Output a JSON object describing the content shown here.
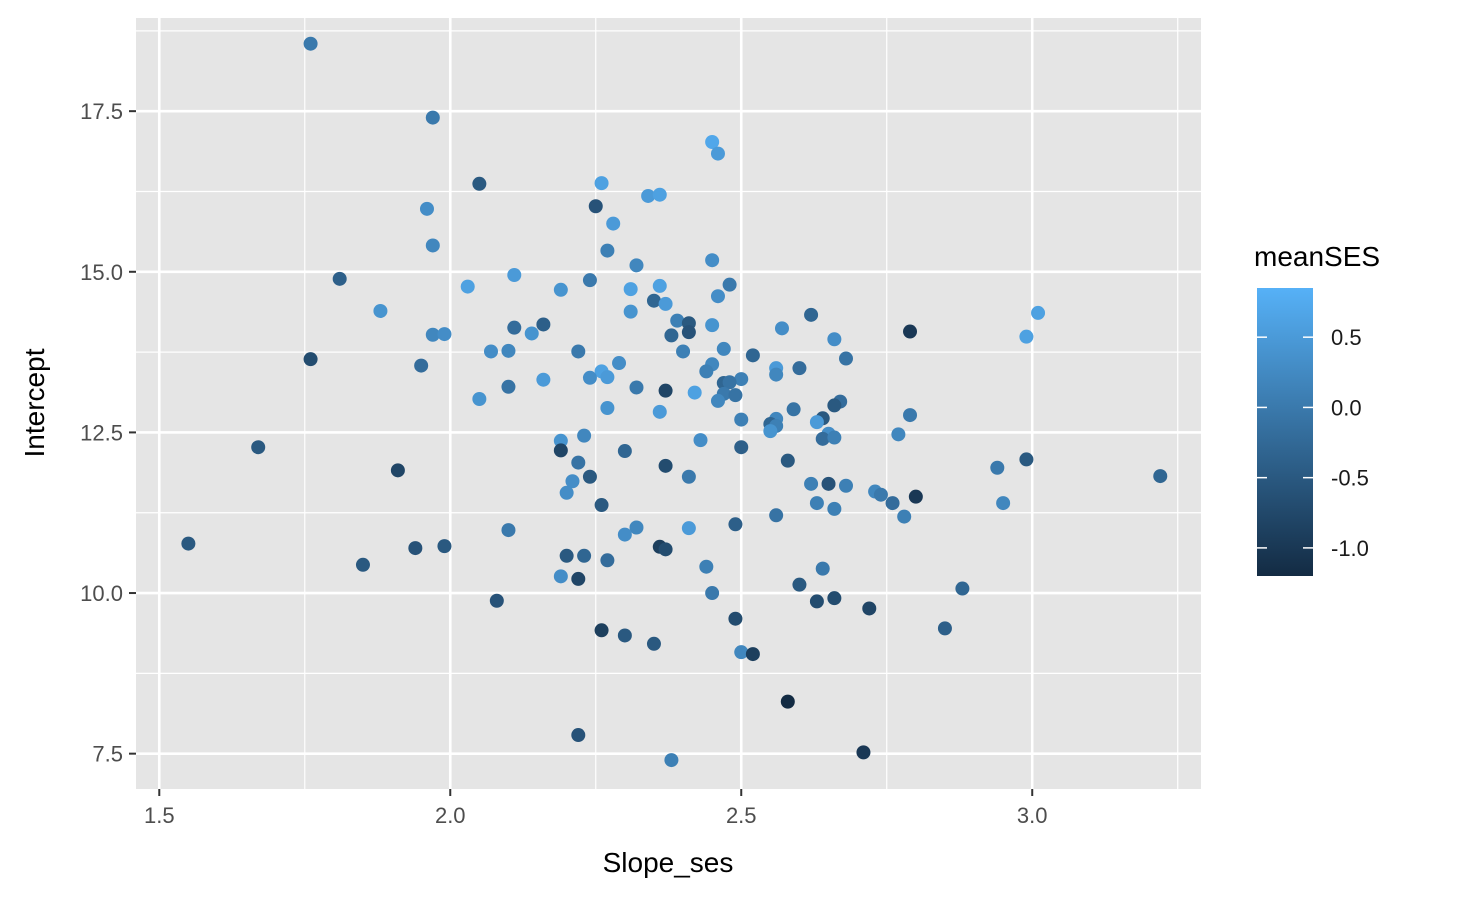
{
  "chart_data": {
    "type": "scatter",
    "title": "",
    "xlabel": "Slope_ses",
    "ylabel": "Intercept",
    "xlim": [
      1.46,
      3.29
    ],
    "ylim": [
      6.95,
      18.95
    ],
    "x_ticks": [
      1.5,
      2.0,
      2.5,
      3.0
    ],
    "x_tick_labels": [
      "1.5",
      "2.0",
      "2.5",
      "3.0"
    ],
    "y_ticks": [
      7.5,
      10.0,
      12.5,
      15.0,
      17.5
    ],
    "y_tick_labels": [
      "7.5",
      "10.0",
      "12.5",
      "15.0",
      "17.5"
    ],
    "grid": true,
    "legend": {
      "title": "meanSES",
      "placement": "right",
      "type": "colorbar",
      "range": [
        -1.2,
        0.85
      ],
      "ticks": [
        0.5,
        0.0,
        -0.5,
        -1.0
      ],
      "tick_labels": [
        "0.5",
        "0.0",
        "-0.5",
        "-1.0"
      ],
      "color_low": "#132b43",
      "color_high": "#56b1f7"
    },
    "colors": {
      "panel": "#e5e5e5",
      "grid": "#ffffff"
    },
    "points": [
      {
        "x": 1.76,
        "y": 18.55,
        "c": 0.0
      },
      {
        "x": 1.97,
        "y": 17.4,
        "c": 0.0
      },
      {
        "x": 2.45,
        "y": 17.02,
        "c": 0.7
      },
      {
        "x": 2.46,
        "y": 16.84,
        "c": 0.5
      },
      {
        "x": 2.05,
        "y": 16.37,
        "c": -0.5
      },
      {
        "x": 2.26,
        "y": 16.38,
        "c": 0.6
      },
      {
        "x": 2.34,
        "y": 16.18,
        "c": 0.5
      },
      {
        "x": 2.36,
        "y": 16.2,
        "c": 0.6
      },
      {
        "x": 2.25,
        "y": 16.02,
        "c": -0.6
      },
      {
        "x": 1.96,
        "y": 15.98,
        "c": 0.3
      },
      {
        "x": 2.28,
        "y": 15.75,
        "c": 0.5
      },
      {
        "x": 1.97,
        "y": 15.41,
        "c": 0.2
      },
      {
        "x": 2.27,
        "y": 15.33,
        "c": 0.1
      },
      {
        "x": 2.45,
        "y": 15.18,
        "c": 0.3
      },
      {
        "x": 2.32,
        "y": 15.1,
        "c": 0.2
      },
      {
        "x": 2.11,
        "y": 14.95,
        "c": 0.5
      },
      {
        "x": 1.81,
        "y": 14.89,
        "c": -0.4
      },
      {
        "x": 2.24,
        "y": 14.87,
        "c": 0.0
      },
      {
        "x": 2.48,
        "y": 14.8,
        "c": 0.0
      },
      {
        "x": 2.03,
        "y": 14.77,
        "c": 0.6
      },
      {
        "x": 2.36,
        "y": 14.78,
        "c": 0.6
      },
      {
        "x": 2.19,
        "y": 14.72,
        "c": 0.4
      },
      {
        "x": 2.31,
        "y": 14.73,
        "c": 0.6
      },
      {
        "x": 2.46,
        "y": 14.62,
        "c": 0.3
      },
      {
        "x": 2.35,
        "y": 14.55,
        "c": -0.3
      },
      {
        "x": 2.37,
        "y": 14.5,
        "c": 0.5
      },
      {
        "x": 1.88,
        "y": 14.39,
        "c": 0.4
      },
      {
        "x": 2.31,
        "y": 14.38,
        "c": 0.4
      },
      {
        "x": 3.01,
        "y": 14.36,
        "c": 0.6
      },
      {
        "x": 2.62,
        "y": 14.33,
        "c": -0.3
      },
      {
        "x": 2.39,
        "y": 14.24,
        "c": 0.1
      },
      {
        "x": 2.41,
        "y": 14.2,
        "c": -0.5
      },
      {
        "x": 2.16,
        "y": 14.18,
        "c": -0.4
      },
      {
        "x": 2.45,
        "y": 14.17,
        "c": 0.4
      },
      {
        "x": 2.11,
        "y": 14.13,
        "c": -0.2
      },
      {
        "x": 2.57,
        "y": 14.12,
        "c": 0.3
      },
      {
        "x": 2.79,
        "y": 14.07,
        "c": -1.0
      },
      {
        "x": 2.41,
        "y": 14.06,
        "c": -0.6
      },
      {
        "x": 2.14,
        "y": 14.04,
        "c": 0.4
      },
      {
        "x": 1.97,
        "y": 14.02,
        "c": 0.2
      },
      {
        "x": 1.99,
        "y": 14.03,
        "c": 0.3
      },
      {
        "x": 2.38,
        "y": 14.01,
        "c": -0.3
      },
      {
        "x": 2.99,
        "y": 13.99,
        "c": 0.6
      },
      {
        "x": 2.66,
        "y": 13.95,
        "c": 0.3
      },
      {
        "x": 2.47,
        "y": 13.8,
        "c": 0.2
      },
      {
        "x": 2.1,
        "y": 13.77,
        "c": 0.2
      },
      {
        "x": 2.07,
        "y": 13.76,
        "c": 0.3
      },
      {
        "x": 2.22,
        "y": 13.76,
        "c": 0.0
      },
      {
        "x": 2.4,
        "y": 13.76,
        "c": 0.1
      },
      {
        "x": 2.52,
        "y": 13.7,
        "c": -0.3
      },
      {
        "x": 1.76,
        "y": 13.64,
        "c": -0.7
      },
      {
        "x": 2.68,
        "y": 13.65,
        "c": -0.1
      },
      {
        "x": 2.29,
        "y": 13.58,
        "c": 0.3
      },
      {
        "x": 2.45,
        "y": 13.56,
        "c": 0.2
      },
      {
        "x": 1.95,
        "y": 13.54,
        "c": -0.2
      },
      {
        "x": 2.56,
        "y": 13.5,
        "c": 0.5
      },
      {
        "x": 2.6,
        "y": 13.5,
        "c": -0.2
      },
      {
        "x": 2.26,
        "y": 13.45,
        "c": 0.6
      },
      {
        "x": 2.44,
        "y": 13.45,
        "c": 0.1
      },
      {
        "x": 2.56,
        "y": 13.4,
        "c": 0.2
      },
      {
        "x": 2.24,
        "y": 13.35,
        "c": 0.3
      },
      {
        "x": 2.27,
        "y": 13.36,
        "c": 0.5
      },
      {
        "x": 2.5,
        "y": 13.33,
        "c": 0.1
      },
      {
        "x": 2.16,
        "y": 13.32,
        "c": 0.5
      },
      {
        "x": 2.47,
        "y": 13.27,
        "c": -0.3
      },
      {
        "x": 2.48,
        "y": 13.28,
        "c": -0.1
      },
      {
        "x": 2.1,
        "y": 13.21,
        "c": -0.1
      },
      {
        "x": 2.32,
        "y": 13.2,
        "c": 0.0
      },
      {
        "x": 2.37,
        "y": 13.15,
        "c": -0.8
      },
      {
        "x": 2.42,
        "y": 13.12,
        "c": 0.6
      },
      {
        "x": 2.47,
        "y": 13.1,
        "c": 0.0
      },
      {
        "x": 2.49,
        "y": 13.08,
        "c": -0.1
      },
      {
        "x": 2.05,
        "y": 13.02,
        "c": 0.4
      },
      {
        "x": 2.46,
        "y": 12.99,
        "c": 0.2
      },
      {
        "x": 2.67,
        "y": 12.98,
        "c": -0.2
      },
      {
        "x": 2.66,
        "y": 12.92,
        "c": -0.5
      },
      {
        "x": 2.27,
        "y": 12.88,
        "c": 0.4
      },
      {
        "x": 2.59,
        "y": 12.86,
        "c": -0.1
      },
      {
        "x": 2.36,
        "y": 12.82,
        "c": 0.5
      },
      {
        "x": 2.79,
        "y": 12.77,
        "c": 0.0
      },
      {
        "x": 2.64,
        "y": 12.72,
        "c": -0.5
      },
      {
        "x": 2.5,
        "y": 12.7,
        "c": 0.1
      },
      {
        "x": 2.56,
        "y": 12.71,
        "c": 0.2
      },
      {
        "x": 2.63,
        "y": 12.66,
        "c": 0.5
      },
      {
        "x": 2.55,
        "y": 12.63,
        "c": -0.3
      },
      {
        "x": 2.56,
        "y": 12.6,
        "c": 0.1
      },
      {
        "x": 2.55,
        "y": 12.52,
        "c": 0.4
      },
      {
        "x": 2.65,
        "y": 12.48,
        "c": 0.3
      },
      {
        "x": 2.77,
        "y": 12.47,
        "c": 0.2
      },
      {
        "x": 2.23,
        "y": 12.45,
        "c": 0.2
      },
      {
        "x": 2.64,
        "y": 12.4,
        "c": -0.2
      },
      {
        "x": 2.66,
        "y": 12.42,
        "c": 0.1
      },
      {
        "x": 2.19,
        "y": 12.37,
        "c": 0.4
      },
      {
        "x": 2.43,
        "y": 12.38,
        "c": 0.3
      },
      {
        "x": 1.67,
        "y": 12.27,
        "c": -0.5
      },
      {
        "x": 2.5,
        "y": 12.27,
        "c": -0.4
      },
      {
        "x": 2.19,
        "y": 12.22,
        "c": -0.8
      },
      {
        "x": 2.3,
        "y": 12.21,
        "c": -0.3
      },
      {
        "x": 2.99,
        "y": 12.08,
        "c": -0.5
      },
      {
        "x": 2.58,
        "y": 12.06,
        "c": -0.5
      },
      {
        "x": 2.22,
        "y": 12.03,
        "c": -0.1
      },
      {
        "x": 2.37,
        "y": 11.98,
        "c": -0.7
      },
      {
        "x": 2.94,
        "y": 11.95,
        "c": 0.0
      },
      {
        "x": 1.91,
        "y": 11.91,
        "c": -0.8
      },
      {
        "x": 3.22,
        "y": 11.82,
        "c": -0.3
      },
      {
        "x": 2.24,
        "y": 11.81,
        "c": -0.5
      },
      {
        "x": 2.41,
        "y": 11.81,
        "c": 0.0
      },
      {
        "x": 2.21,
        "y": 11.74,
        "c": 0.3
      },
      {
        "x": 2.62,
        "y": 11.7,
        "c": 0.1
      },
      {
        "x": 2.65,
        "y": 11.7,
        "c": -0.6
      },
      {
        "x": 2.68,
        "y": 11.67,
        "c": 0.1
      },
      {
        "x": 2.73,
        "y": 11.58,
        "c": 0.2
      },
      {
        "x": 2.2,
        "y": 11.56,
        "c": 0.3
      },
      {
        "x": 2.74,
        "y": 11.53,
        "c": 0.0
      },
      {
        "x": 2.8,
        "y": 11.5,
        "c": -1.0
      },
      {
        "x": 2.76,
        "y": 11.4,
        "c": -0.2
      },
      {
        "x": 2.63,
        "y": 11.4,
        "c": 0.1
      },
      {
        "x": 2.95,
        "y": 11.4,
        "c": 0.2
      },
      {
        "x": 2.26,
        "y": 11.37,
        "c": -0.5
      },
      {
        "x": 2.66,
        "y": 11.31,
        "c": 0.1
      },
      {
        "x": 2.56,
        "y": 11.21,
        "c": -0.1
      },
      {
        "x": 2.78,
        "y": 11.19,
        "c": 0.1
      },
      {
        "x": 2.49,
        "y": 11.07,
        "c": -0.4
      },
      {
        "x": 2.32,
        "y": 11.02,
        "c": 0.2
      },
      {
        "x": 2.41,
        "y": 11.01,
        "c": 0.5
      },
      {
        "x": 2.1,
        "y": 10.98,
        "c": 0.0
      },
      {
        "x": 2.3,
        "y": 10.91,
        "c": 0.3
      },
      {
        "x": 1.55,
        "y": 10.77,
        "c": -0.5
      },
      {
        "x": 1.99,
        "y": 10.73,
        "c": -0.5
      },
      {
        "x": 1.94,
        "y": 10.7,
        "c": -0.6
      },
      {
        "x": 2.36,
        "y": 10.72,
        "c": -0.9
      },
      {
        "x": 2.37,
        "y": 10.68,
        "c": -0.7
      },
      {
        "x": 2.2,
        "y": 10.58,
        "c": -0.5
      },
      {
        "x": 2.23,
        "y": 10.58,
        "c": -0.3
      },
      {
        "x": 2.27,
        "y": 10.51,
        "c": -0.2
      },
      {
        "x": 1.85,
        "y": 10.44,
        "c": -0.5
      },
      {
        "x": 2.44,
        "y": 10.41,
        "c": 0.1
      },
      {
        "x": 2.64,
        "y": 10.38,
        "c": 0.0
      },
      {
        "x": 2.19,
        "y": 10.26,
        "c": 0.3
      },
      {
        "x": 2.22,
        "y": 10.22,
        "c": -0.8
      },
      {
        "x": 2.6,
        "y": 10.13,
        "c": -0.5
      },
      {
        "x": 2.88,
        "y": 10.07,
        "c": -0.3
      },
      {
        "x": 2.45,
        "y": 10.0,
        "c": 0.0
      },
      {
        "x": 2.08,
        "y": 9.88,
        "c": -0.6
      },
      {
        "x": 2.63,
        "y": 9.87,
        "c": -0.7
      },
      {
        "x": 2.66,
        "y": 9.92,
        "c": -0.7
      },
      {
        "x": 2.72,
        "y": 9.76,
        "c": -0.8
      },
      {
        "x": 2.49,
        "y": 9.6,
        "c": -0.7
      },
      {
        "x": 2.85,
        "y": 9.45,
        "c": -0.4
      },
      {
        "x": 2.26,
        "y": 9.42,
        "c": -0.9
      },
      {
        "x": 2.3,
        "y": 9.34,
        "c": -0.5
      },
      {
        "x": 2.35,
        "y": 9.21,
        "c": -0.5
      },
      {
        "x": 2.5,
        "y": 9.08,
        "c": 0.2
      },
      {
        "x": 2.52,
        "y": 9.05,
        "c": -0.9
      },
      {
        "x": 2.58,
        "y": 8.31,
        "c": -1.2
      },
      {
        "x": 2.22,
        "y": 7.79,
        "c": -0.6
      },
      {
        "x": 2.71,
        "y": 7.52,
        "c": -1.0
      },
      {
        "x": 2.38,
        "y": 7.4,
        "c": 0.1
      }
    ]
  }
}
